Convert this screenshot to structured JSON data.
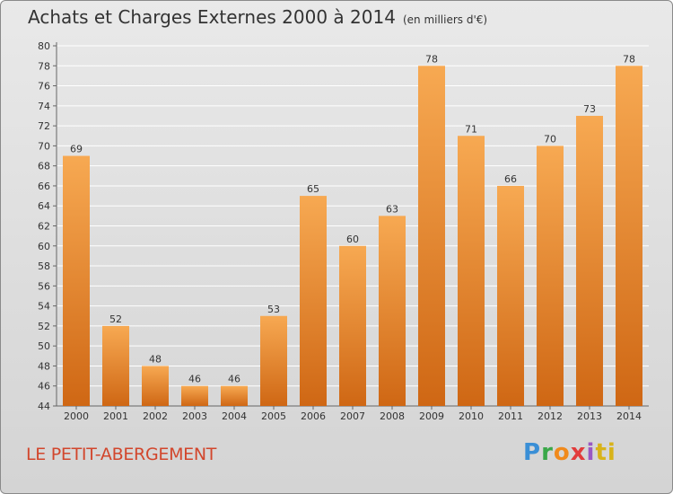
{
  "title": "Achats et Charges Externes 2000 à 2014",
  "unit": "(en milliers d'€)",
  "place": "LE PETIT-ABERGEMENT",
  "logo": "Proxiti",
  "colors": {
    "bar_top": "#f7a952",
    "bar_bottom": "#cf6714",
    "place": "#d2462c"
  },
  "chart_data": {
    "type": "bar",
    "categories": [
      "2000",
      "2001",
      "2002",
      "2003",
      "2004",
      "2005",
      "2006",
      "2007",
      "2008",
      "2009",
      "2010",
      "2011",
      "2012",
      "2013",
      "2014"
    ],
    "values": [
      69,
      52,
      48,
      46,
      46,
      53,
      65,
      60,
      63,
      78,
      71,
      66,
      70,
      73,
      78
    ],
    "title": "Achats et Charges Externes 2000 à 2014",
    "ylim": [
      44,
      80
    ],
    "yticks": [
      44,
      46,
      48,
      50,
      52,
      54,
      56,
      58,
      60,
      62,
      64,
      66,
      68,
      70,
      72,
      74,
      76,
      78,
      80
    ],
    "grid": true,
    "data_labels": true
  }
}
